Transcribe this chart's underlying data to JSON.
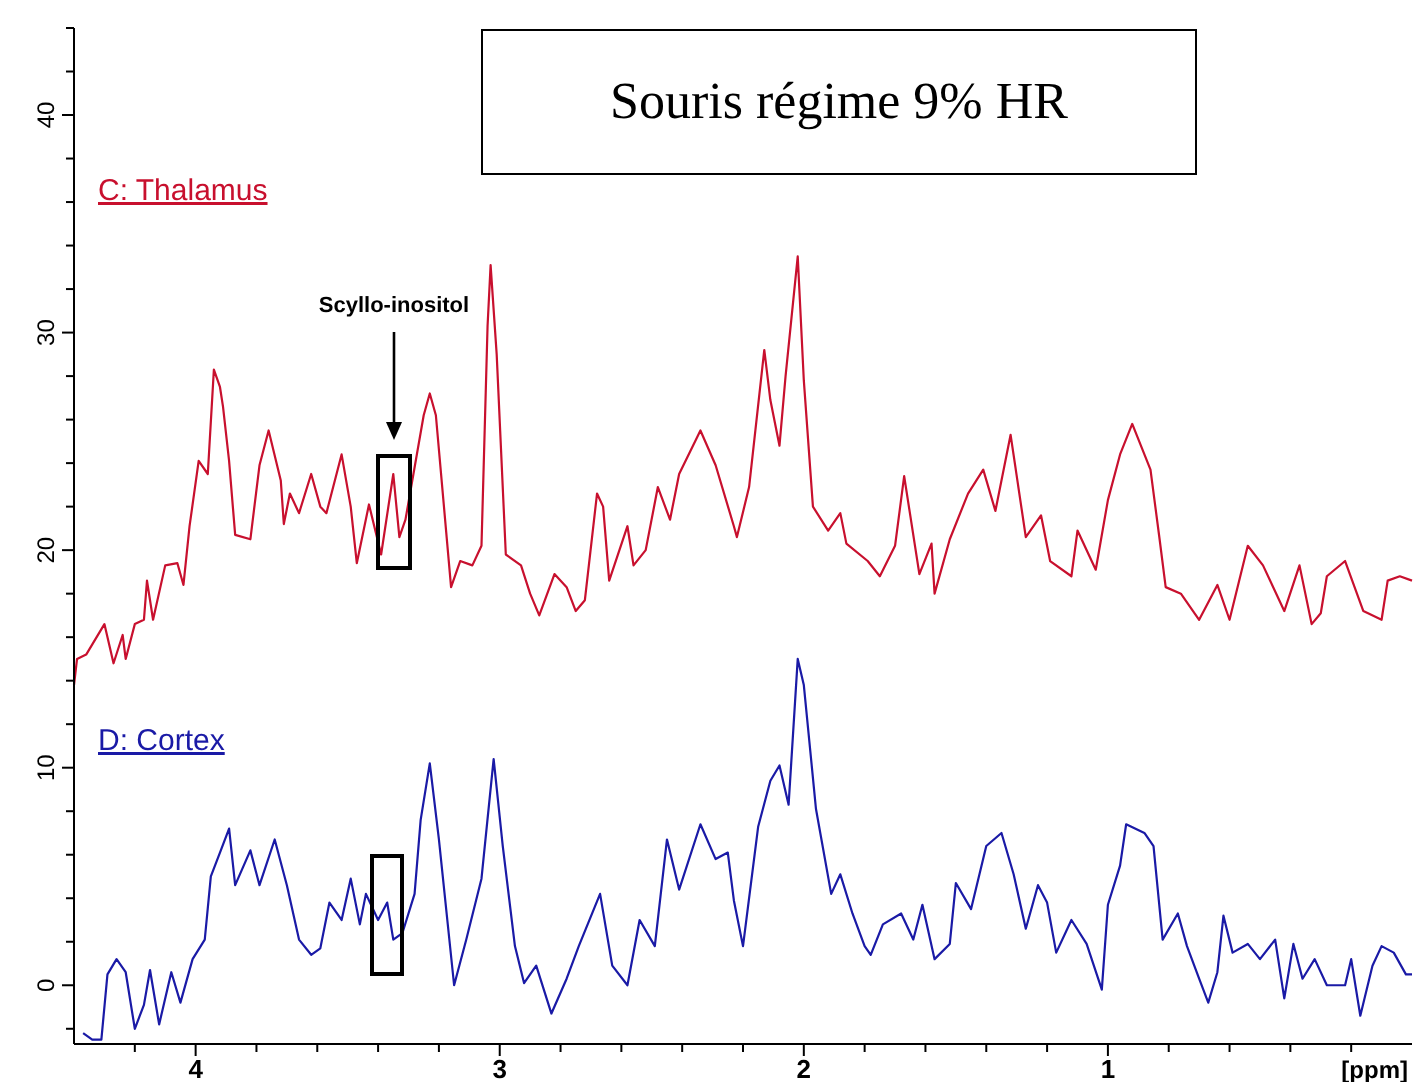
{
  "chart_data": {
    "type": "line",
    "title": "Souris régime 9% HR",
    "xlabel": "[ppm]",
    "annotations": [
      "Scyllo-inositol"
    ],
    "xlim": [
      4.4,
      0
    ],
    "ylim": [
      -2.7,
      44
    ],
    "xticks": [
      {
        "value": 4.2,
        "label": null
      },
      4,
      {
        "value": 3.8,
        "label": null
      },
      {
        "value": 3.6,
        "label": null
      },
      {
        "value": 3.4,
        "label": null
      },
      {
        "value": 3.2,
        "label": null
      },
      3,
      {
        "value": 2.8,
        "label": null
      },
      {
        "value": 2.6,
        "label": null
      },
      {
        "value": 2.4,
        "label": null
      },
      {
        "value": 2.2,
        "label": null
      },
      2,
      {
        "value": 1.8,
        "label": null
      },
      {
        "value": 1.6,
        "label": null
      },
      {
        "value": 1.4,
        "label": null
      },
      {
        "value": 1.2,
        "label": null
      },
      1,
      {
        "value": 0.8,
        "label": null
      },
      {
        "value": 0.6,
        "label": null
      },
      {
        "value": 0.4,
        "label": null
      },
      {
        "value": 0.2,
        "label": null
      }
    ],
    "yticks": [
      {
        "value": -2,
        "label": null
      },
      0,
      {
        "value": 2,
        "label": null
      },
      {
        "value": 4,
        "label": null
      },
      {
        "value": 6,
        "label": null
      },
      {
        "value": 8,
        "label": null
      },
      10,
      {
        "value": 12,
        "label": null
      },
      {
        "value": 14,
        "label": null
      },
      {
        "value": 16,
        "label": null
      },
      {
        "value": 18,
        "label": null
      },
      20,
      {
        "value": 22,
        "label": null
      },
      {
        "value": 24,
        "label": null
      },
      {
        "value": 26,
        "label": null
      },
      {
        "value": 28,
        "label": null
      },
      30,
      {
        "value": 32,
        "label": null
      },
      {
        "value": 34,
        "label": null
      },
      {
        "value": 36,
        "label": null
      },
      {
        "value": 38,
        "label": null
      },
      40,
      {
        "value": 42,
        "label": null
      },
      {
        "value": 44,
        "label": null
      }
    ],
    "grid": false,
    "marker": "none",
    "line_style": "solid",
    "series": [
      {
        "name": "C: Thalamus",
        "color": "#c8102e",
        "x": [
          4.4,
          4.39,
          4.36,
          4.3,
          4.27,
          4.24,
          4.23,
          4.2,
          4.17,
          4.16,
          4.14,
          4.1,
          4.06,
          4.04,
          4.02,
          3.99,
          3.96,
          3.94,
          3.92,
          3.91,
          3.89,
          3.87,
          3.82,
          3.79,
          3.76,
          3.72,
          3.71,
          3.69,
          3.66,
          3.62,
          3.59,
          3.57,
          3.52,
          3.49,
          3.47,
          3.43,
          3.39,
          3.35,
          3.33,
          3.31,
          3.25,
          3.23,
          3.21,
          3.16,
          3.13,
          3.09,
          3.06,
          3.04,
          3.03,
          3.01,
          2.98,
          2.93,
          2.9,
          2.87,
          2.82,
          2.78,
          2.75,
          2.72,
          2.68,
          2.66,
          2.64,
          2.58,
          2.56,
          2.52,
          2.48,
          2.44,
          2.41,
          2.34,
          2.29,
          2.23,
          2.22,
          2.18,
          2.13,
          2.11,
          2.08,
          2.06,
          2.02,
          2.0,
          1.97,
          1.92,
          1.88,
          1.86,
          1.79,
          1.75,
          1.7,
          1.67,
          1.62,
          1.58,
          1.57,
          1.52,
          1.46,
          1.41,
          1.37,
          1.32,
          1.27,
          1.22,
          1.19,
          1.12,
          1.1,
          1.04,
          1.0,
          0.96,
          0.92,
          0.86,
          0.83,
          0.81,
          0.76,
          0.7,
          0.64,
          0.6,
          0.54,
          0.49,
          0.42,
          0.37,
          0.33,
          0.3,
          0.28,
          0.22,
          0.16,
          0.1,
          0.08,
          0.04,
          0.0
        ],
        "values": [
          13.8,
          15.0,
          15.2,
          16.6,
          14.8,
          16.1,
          15.0,
          16.6,
          16.8,
          18.6,
          16.8,
          19.3,
          19.4,
          18.4,
          21.1,
          24.1,
          23.5,
          28.3,
          27.5,
          26.6,
          24.1,
          20.7,
          20.5,
          23.9,
          25.5,
          23.2,
          21.2,
          22.6,
          21.7,
          23.5,
          22.0,
          21.7,
          24.4,
          22.0,
          19.4,
          22.1,
          19.8,
          23.5,
          20.6,
          21.4,
          26.2,
          27.2,
          26.2,
          18.3,
          19.5,
          19.3,
          20.2,
          30.3,
          33.1,
          29.0,
          19.8,
          19.3,
          18.0,
          17.0,
          18.9,
          18.3,
          17.2,
          17.7,
          22.6,
          22.0,
          18.6,
          21.1,
          19.3,
          20.0,
          22.9,
          21.4,
          23.5,
          25.5,
          23.9,
          21.1,
          20.6,
          22.9,
          29.2,
          26.9,
          24.8,
          28.0,
          33.5,
          27.8,
          22.0,
          20.9,
          21.7,
          20.3,
          19.5,
          18.8,
          20.2,
          23.4,
          18.9,
          20.3,
          18.0,
          20.5,
          22.6,
          23.7,
          21.8,
          25.3,
          20.6,
          21.6,
          19.5,
          18.8,
          20.9,
          19.1,
          22.3,
          24.4,
          25.8,
          23.7,
          20.5,
          18.3,
          18.0,
          16.8,
          18.4,
          16.8,
          20.2,
          19.3,
          17.2,
          19.3,
          16.6,
          17.1,
          18.8,
          19.5,
          17.2,
          16.8,
          18.6,
          18.8,
          18.6
        ]
      },
      {
        "name": "D: Cortex",
        "color": "#1a1aa6",
        "x": [
          4.37,
          4.34,
          4.31,
          4.29,
          4.26,
          4.23,
          4.2,
          4.17,
          4.15,
          4.12,
          4.08,
          4.05,
          4.01,
          3.97,
          3.95,
          3.92,
          3.89,
          3.87,
          3.82,
          3.79,
          3.74,
          3.7,
          3.66,
          3.62,
          3.59,
          3.56,
          3.52,
          3.49,
          3.46,
          3.44,
          3.4,
          3.37,
          3.35,
          3.32,
          3.28,
          3.26,
          3.23,
          3.2,
          3.15,
          3.11,
          3.06,
          3.02,
          2.99,
          2.95,
          2.92,
          2.88,
          2.83,
          2.78,
          2.74,
          2.67,
          2.63,
          2.58,
          2.54,
          2.49,
          2.45,
          2.41,
          2.34,
          2.29,
          2.25,
          2.23,
          2.2,
          2.15,
          2.11,
          2.08,
          2.05,
          2.02,
          2.0,
          1.96,
          1.91,
          1.88,
          1.84,
          1.8,
          1.78,
          1.74,
          1.68,
          1.64,
          1.61,
          1.57,
          1.52,
          1.5,
          1.45,
          1.4,
          1.35,
          1.31,
          1.27,
          1.23,
          1.2,
          1.17,
          1.12,
          1.07,
          1.02,
          1.0,
          0.96,
          0.94,
          0.88,
          0.85,
          0.82,
          0.77,
          0.74,
          0.7,
          0.67,
          0.64,
          0.62,
          0.59,
          0.54,
          0.5,
          0.45,
          0.42,
          0.39,
          0.36,
          0.32,
          0.28,
          0.22,
          0.2,
          0.17,
          0.13,
          0.1,
          0.06,
          0.02,
          0.0
        ],
        "values": [
          -2.2,
          -2.5,
          -2.5,
          0.5,
          1.2,
          0.6,
          -2.0,
          -0.9,
          0.7,
          -1.8,
          0.6,
          -0.8,
          1.2,
          2.1,
          5.0,
          6.1,
          7.2,
          4.6,
          6.2,
          4.6,
          6.7,
          4.6,
          2.1,
          1.4,
          1.7,
          3.8,
          3.0,
          4.9,
          2.8,
          4.2,
          3.0,
          3.8,
          2.1,
          2.4,
          4.2,
          7.6,
          10.2,
          6.7,
          0.0,
          2.1,
          4.9,
          10.4,
          6.4,
          1.8,
          0.1,
          0.9,
          -1.3,
          0.3,
          1.8,
          4.2,
          0.9,
          0.0,
          3.0,
          1.8,
          6.7,
          4.4,
          7.4,
          5.8,
          6.1,
          3.9,
          1.8,
          7.3,
          9.4,
          10.1,
          8.3,
          15.0,
          13.8,
          8.1,
          4.2,
          5.1,
          3.3,
          1.8,
          1.4,
          2.8,
          3.3,
          2.1,
          3.7,
          1.2,
          1.9,
          4.7,
          3.5,
          6.4,
          7.0,
          5.1,
          2.6,
          4.6,
          3.8,
          1.5,
          3.0,
          1.9,
          -0.2,
          3.7,
          5.5,
          7.4,
          7.0,
          6.4,
          2.1,
          3.3,
          1.8,
          0.3,
          -0.8,
          0.6,
          3.2,
          1.5,
          1.9,
          1.2,
          2.1,
          -0.6,
          1.9,
          0.3,
          1.2,
          0.0,
          0.0,
          1.2,
          -1.4,
          0.9,
          1.8,
          1.5,
          0.5,
          0.5
        ]
      }
    ]
  }
}
